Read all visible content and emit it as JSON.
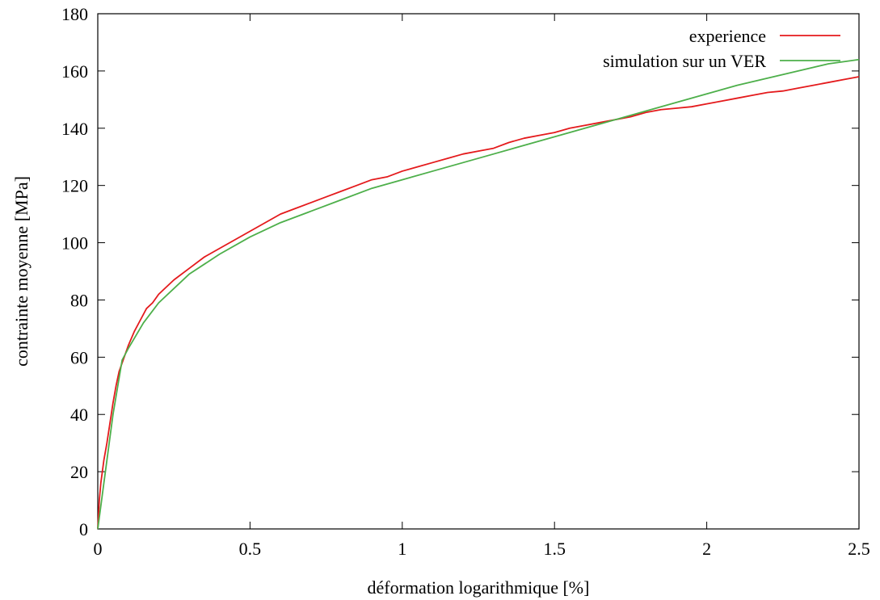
{
  "chart_data": {
    "type": "line",
    "title": "",
    "xlabel": "déformation logarithmique [%]",
    "ylabel": "contrainte moyenne [MPa]",
    "xlim": [
      0,
      2.5
    ],
    "ylim": [
      0,
      180
    ],
    "x_ticks": [
      "0",
      "0.5",
      "1",
      "1.5",
      "2",
      "2.5"
    ],
    "y_ticks": [
      "0",
      "20",
      "40",
      "60",
      "80",
      "100",
      "120",
      "140",
      "160",
      "180"
    ],
    "grid": false,
    "legend_position": "top-right",
    "series": [
      {
        "name": "experience",
        "color": "#e41a1c",
        "x": [
          0,
          0.005,
          0.01,
          0.02,
          0.03,
          0.04,
          0.05,
          0.06,
          0.07,
          0.08,
          0.09,
          0.1,
          0.12,
          0.14,
          0.16,
          0.18,
          0.2,
          0.25,
          0.3,
          0.35,
          0.4,
          0.45,
          0.5,
          0.55,
          0.6,
          0.65,
          0.7,
          0.75,
          0.8,
          0.85,
          0.9,
          0.95,
          1.0,
          1.05,
          1.1,
          1.15,
          1.2,
          1.25,
          1.3,
          1.35,
          1.4,
          1.45,
          1.5,
          1.55,
          1.6,
          1.65,
          1.7,
          1.75,
          1.8,
          1.85,
          1.9,
          1.95,
          2.0,
          2.05,
          2.1,
          2.15,
          2.2,
          2.25,
          2.3,
          2.35,
          2.4,
          2.45,
          2.5
        ],
        "y": [
          0,
          10,
          16,
          24,
          30,
          37,
          44,
          50,
          55,
          58,
          61,
          64,
          69,
          73,
          77,
          79,
          82,
          87,
          91,
          95,
          98,
          101,
          104,
          107,
          110,
          112,
          114,
          116,
          118,
          120,
          122,
          123,
          125,
          126.5,
          128,
          129.5,
          131,
          132,
          133,
          135,
          136.5,
          137.5,
          138.5,
          140,
          141,
          142,
          143,
          144,
          145.5,
          146.5,
          147,
          147.5,
          148.5,
          149.5,
          150.5,
          151.5,
          152.5,
          153,
          154,
          155,
          156,
          157,
          158
        ]
      },
      {
        "name": "simulation sur un VER",
        "color": "#4daf4a",
        "x": [
          0,
          0.05,
          0.08,
          0.1,
          0.15,
          0.2,
          0.3,
          0.4,
          0.5,
          0.6,
          0.7,
          0.8,
          0.9,
          1.0,
          1.1,
          1.2,
          1.3,
          1.4,
          1.5,
          1.6,
          1.7,
          1.8,
          1.9,
          2.0,
          2.1,
          2.2,
          2.3,
          2.4,
          2.5
        ],
        "y": [
          0,
          40,
          59,
          63,
          72,
          79,
          89,
          96,
          102,
          107,
          111,
          115,
          119,
          122,
          125,
          128,
          131,
          134,
          137,
          140,
          143,
          146,
          149,
          152,
          155,
          157.5,
          160,
          162.5,
          164
        ]
      }
    ]
  }
}
